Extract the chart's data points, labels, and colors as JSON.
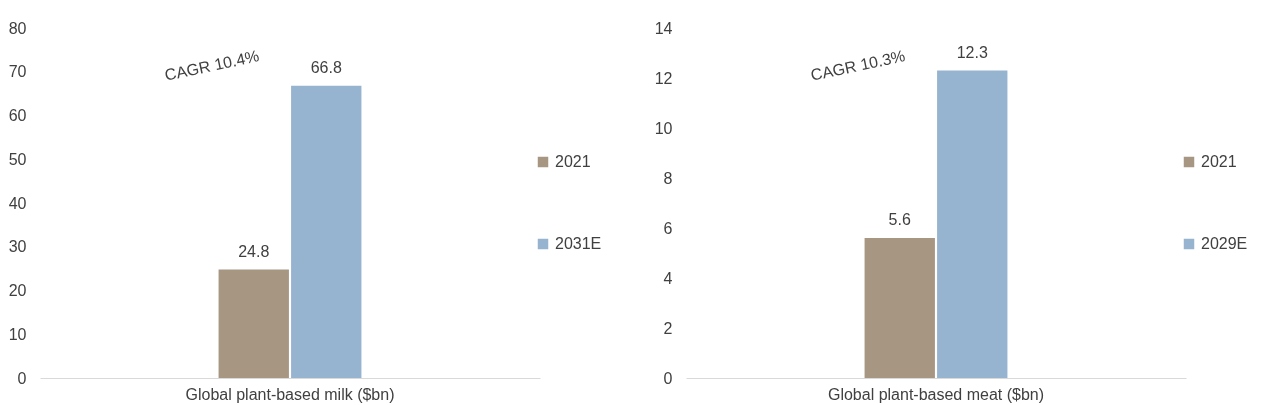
{
  "chart_data": [
    {
      "type": "bar",
      "categories": [
        "Global plant-based milk ($bn)"
      ],
      "series": [
        {
          "name": "2021",
          "color": "#a69682",
          "values": [
            24.8
          ]
        },
        {
          "name": "2031E",
          "color": "#96b3cf",
          "values": [
            66.8
          ]
        }
      ],
      "ylim": [
        0,
        80
      ],
      "yticks": [
        0,
        10,
        20,
        30,
        40,
        50,
        60,
        70,
        80
      ],
      "data_labels": true,
      "legend": "right",
      "grid": false,
      "annotations": [
        "CAGR 10.4%"
      ]
    },
    {
      "type": "bar",
      "categories": [
        "Global plant-based meat ($bn)"
      ],
      "series": [
        {
          "name": "2021",
          "color": "#a69682",
          "values": [
            5.6
          ]
        },
        {
          "name": "2029E",
          "color": "#96b3cf",
          "values": [
            12.3
          ]
        }
      ],
      "ylim": [
        0,
        14
      ],
      "yticks": [
        0,
        2,
        4,
        6,
        8,
        10,
        12,
        14
      ],
      "data_labels": true,
      "legend": "right",
      "grid": false,
      "annotations": [
        "CAGR 10.3%"
      ]
    }
  ]
}
